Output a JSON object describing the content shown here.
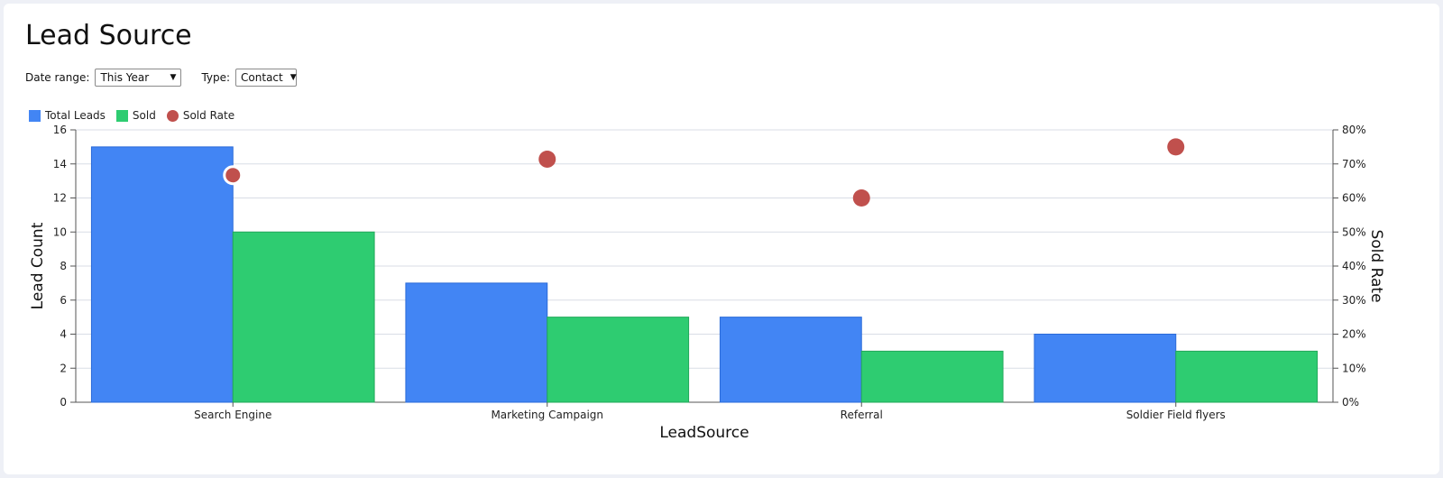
{
  "page": {
    "title": "Lead Source"
  },
  "filters": {
    "date_range_label": "Date range:",
    "date_range_value": "This Year",
    "type_label": "Type:",
    "type_value": "Contact"
  },
  "colors": {
    "total_leads": "#4285f4",
    "sold": "#2ecc71",
    "sold_rate": "#c0504d",
    "grid": "#d9dde6",
    "axis": "#555555"
  },
  "chart_data": {
    "type": "bar",
    "categories": [
      "Search Engine",
      "Marketing Campaign",
      "Referral",
      "Soldier Field flyers"
    ],
    "series": [
      {
        "name": "Total Leads",
        "kind": "bar",
        "axis": "left",
        "values": [
          15,
          7,
          5,
          4
        ]
      },
      {
        "name": "Sold",
        "kind": "bar",
        "axis": "left",
        "values": [
          10,
          5,
          3,
          3
        ]
      },
      {
        "name": "Sold Rate",
        "kind": "scatter",
        "axis": "right",
        "values": [
          66.7,
          71.4,
          60,
          75
        ]
      }
    ],
    "xlabel": "LeadSource",
    "ylabel": "Lead Count",
    "y2label": "Sold Rate",
    "ylim": [
      0,
      16
    ],
    "y2lim": [
      0,
      80
    ],
    "yticks": [
      "0",
      "2",
      "4",
      "6",
      "8",
      "10",
      "12",
      "14",
      "16"
    ],
    "y2ticks": [
      "0%",
      "10%",
      "20%",
      "30%",
      "40%",
      "50%",
      "60%",
      "70%",
      "80%"
    ],
    "grid": true,
    "legend_position": "top-left"
  }
}
